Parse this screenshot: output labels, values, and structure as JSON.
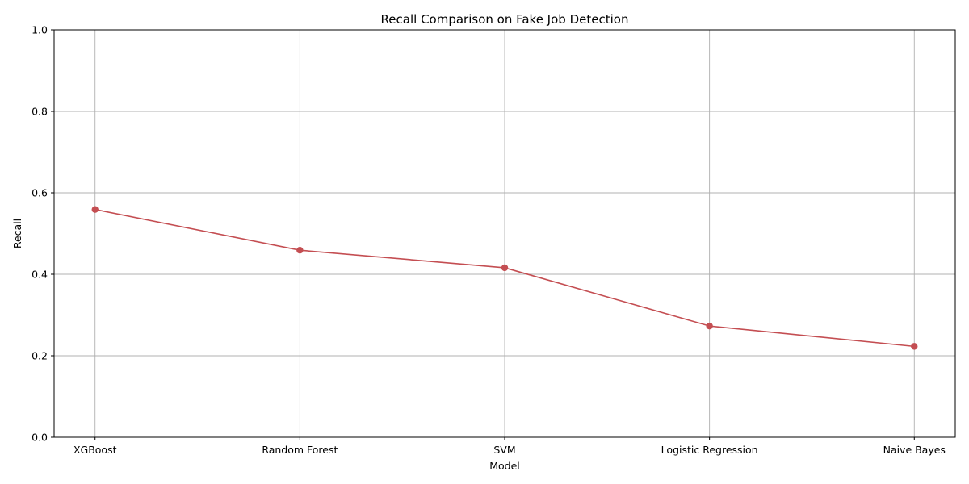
{
  "chart_data": {
    "type": "line",
    "title": "Recall Comparison on Fake Job Detection",
    "xlabel": "Model",
    "ylabel": "Recall",
    "categories": [
      "XGBoost",
      "Random Forest",
      "SVM",
      "Logistic Regression",
      "Naive Bayes"
    ],
    "series": [
      {
        "values": [
          0.559,
          0.459,
          0.416,
          0.273,
          0.223
        ]
      }
    ],
    "ylim": [
      0,
      1
    ],
    "yticks": [
      "0.0",
      "0.2",
      "0.4",
      "0.6",
      "0.8",
      "1.0"
    ],
    "grid": true,
    "marker": "circle",
    "colors": {
      "line": "#c44e52",
      "grid": "#b0b0b0",
      "axis": "#000000"
    }
  }
}
